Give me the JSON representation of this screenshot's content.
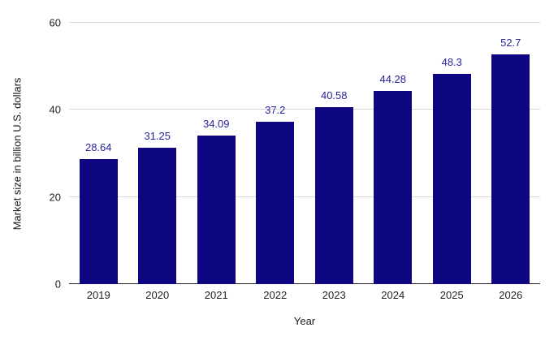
{
  "chart_data": {
    "type": "bar",
    "title": "",
    "categories": [
      "2019",
      "2020",
      "2021",
      "2022",
      "2023",
      "2024",
      "2025",
      "2026"
    ],
    "values": [
      28.64,
      31.25,
      34.09,
      37.2,
      40.58,
      44.28,
      48.3,
      52.7
    ],
    "value_labels": [
      "28.64",
      "31.25",
      "34.09",
      "37.2",
      "40.58",
      "44.28",
      "48.3",
      "52.7"
    ],
    "xlabel": "Year",
    "ylabel": "Market size in billion U.S. dollars",
    "ylim": [
      0,
      60
    ],
    "yticks": [
      0,
      20,
      40,
      60
    ],
    "grid": "horizontal",
    "legend": "none",
    "colors": {
      "background": "#ffffff",
      "bar": "#0d0680",
      "value_label": "#26269b",
      "gridline": "#d9d9d9",
      "axis_line": "#222222",
      "tick_label": "#222222"
    }
  }
}
